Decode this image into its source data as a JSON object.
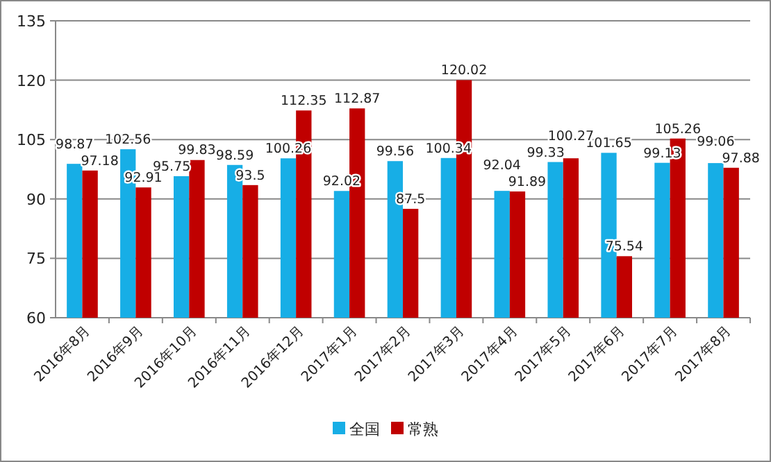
{
  "chart_data": {
    "type": "bar",
    "categories": [
      "2016年8月",
      "2016年9月",
      "2016年10月",
      "2016年11月",
      "2016年12月",
      "2017年1月",
      "2017年2月",
      "2017年3月",
      "2017年4月",
      "2017年5月",
      "2017年6月",
      "2017年7月",
      "2017年8月"
    ],
    "series": [
      {
        "name": "全国",
        "color": "#17aee6",
        "values": [
          98.87,
          102.56,
          95.75,
          98.59,
          100.26,
          92.02,
          99.56,
          100.34,
          92.04,
          99.33,
          101.65,
          99.13,
          99.06
        ]
      },
      {
        "name": "常熟",
        "color": "#c00000",
        "values": [
          97.18,
          92.91,
          99.83,
          93.5,
          112.35,
          112.87,
          87.5,
          120.02,
          91.89,
          100.27,
          75.54,
          105.26,
          97.88
        ]
      }
    ],
    "ylim": [
      60,
      135
    ],
    "yticks": [
      60,
      75,
      90,
      105,
      120,
      135
    ],
    "grid": "y",
    "legend": "bottom",
    "data_labels": true
  }
}
